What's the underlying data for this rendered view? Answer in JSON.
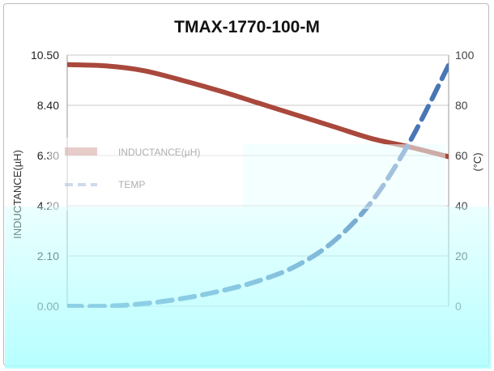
{
  "chart_data": {
    "type": "line",
    "title": "TMAX-1770-100-M",
    "xlabel": "",
    "ylabel": "INDUCTANCE(µH)",
    "y2label": "(°C)",
    "ylim": [
      0,
      10.5
    ],
    "y2lim": [
      0,
      100
    ],
    "yticks": [
      "10.50",
      "8.40",
      "6.30",
      "4.20",
      "2.10",
      "0.00"
    ],
    "y2ticks": [
      "100",
      "80",
      "60",
      "40",
      "20",
      "0"
    ],
    "grid": true,
    "legend_position": "left-middle",
    "series": [
      {
        "name": "INDUCTANCE(µH)",
        "axis": "left",
        "color": "#a9483c",
        "style": "solid",
        "x": [
          0,
          2,
          4,
          6,
          8,
          10,
          12,
          14,
          16,
          18,
          20
        ],
        "y": [
          10.1,
          10.05,
          9.85,
          9.45,
          9.0,
          8.5,
          8.0,
          7.5,
          7.0,
          6.65,
          6.25
        ]
      },
      {
        "name": "TEMP",
        "axis": "right",
        "color": "#4a76b6",
        "style": "dashed",
        "x": [
          0,
          2,
          4,
          6,
          8,
          10,
          12,
          14,
          16,
          18,
          20
        ],
        "y": [
          0,
          0,
          1,
          3,
          6,
          10,
          16,
          26,
          42,
          66,
          96
        ]
      }
    ]
  }
}
